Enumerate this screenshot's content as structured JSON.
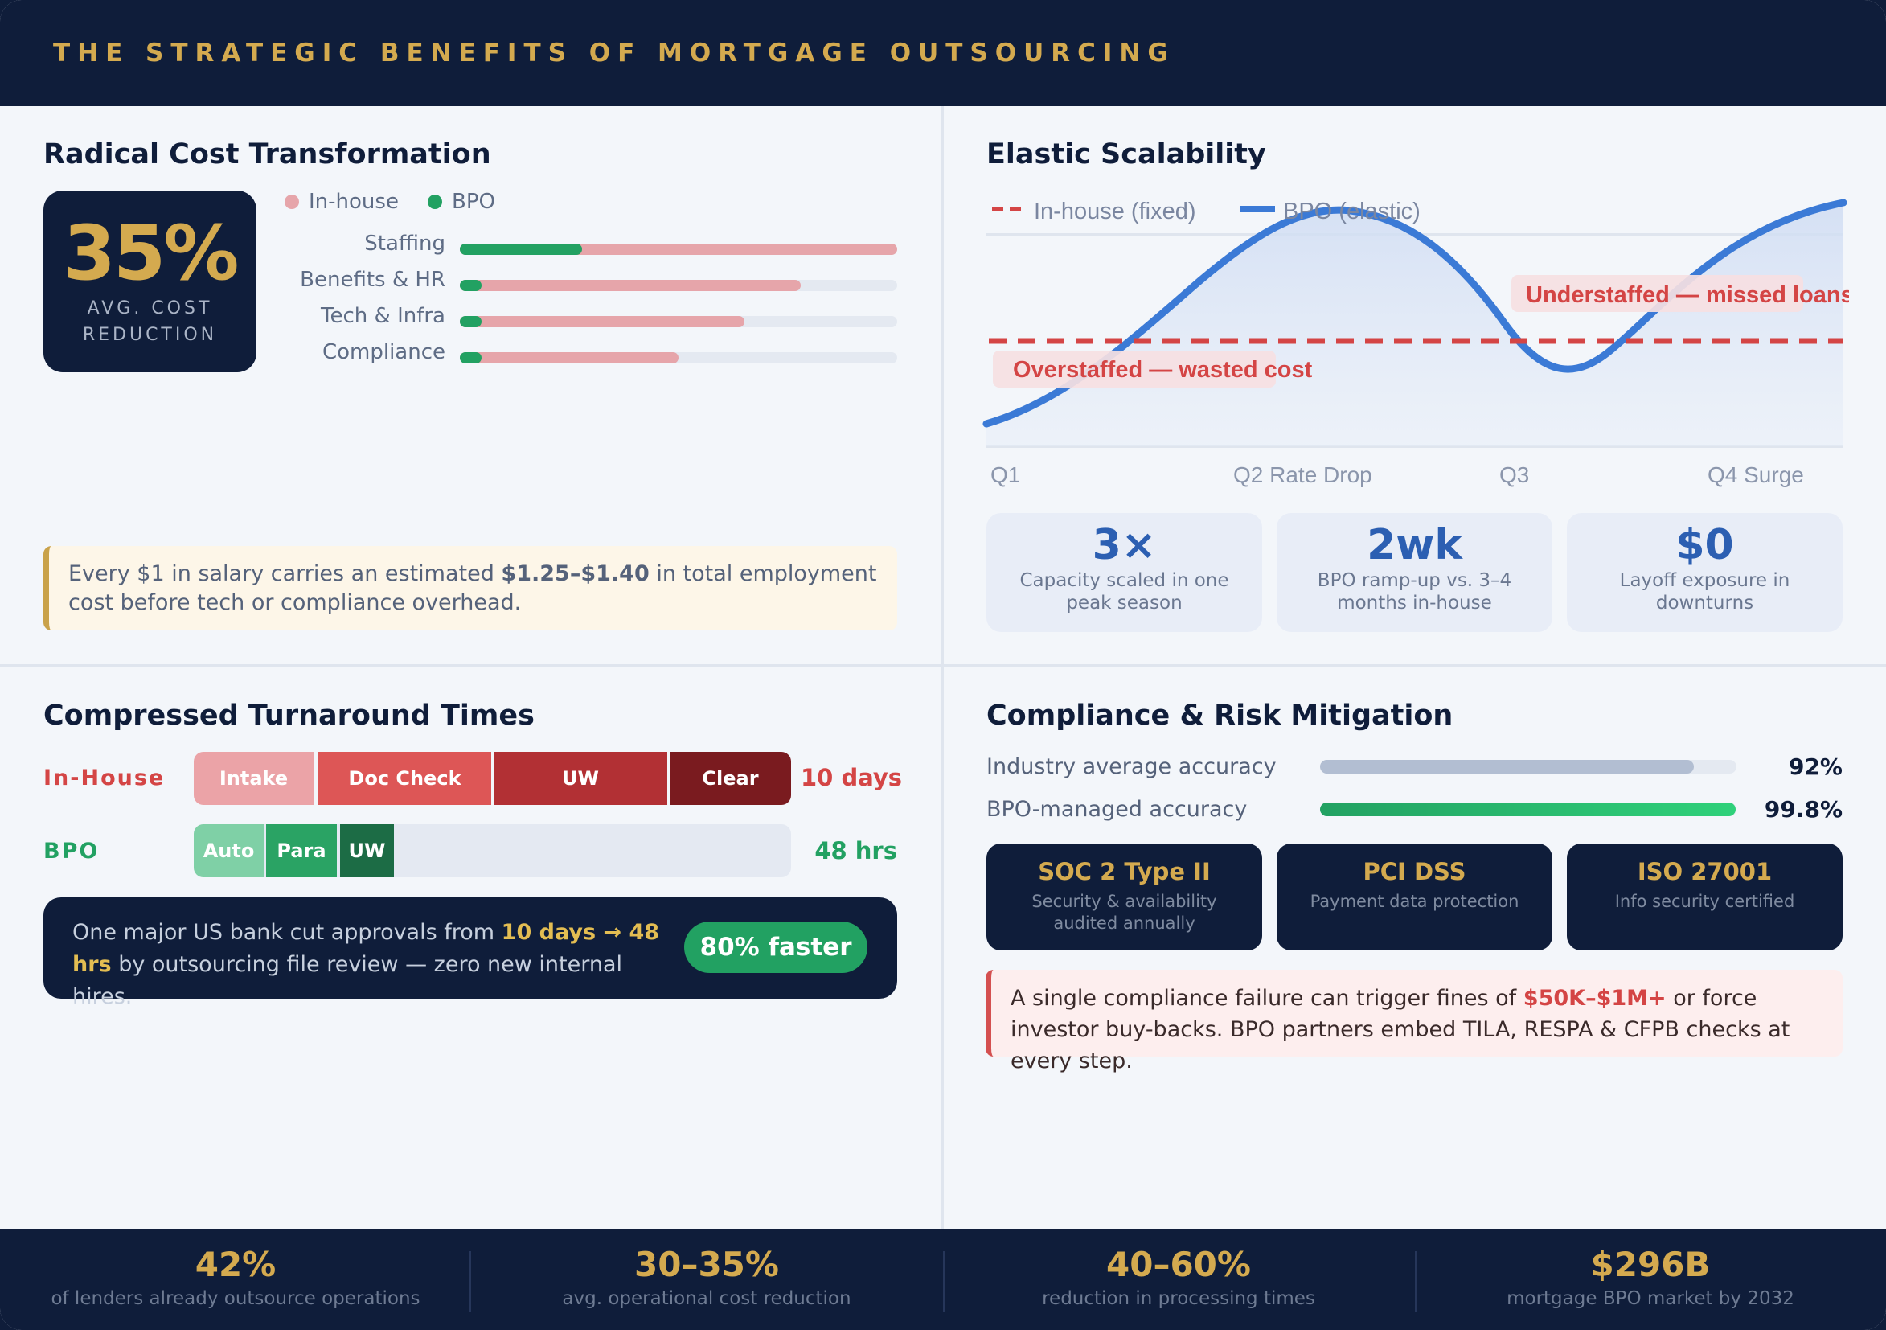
{
  "header": {
    "title": "THE STRATEGIC BENEFITS OF MORTGAGE OUTSOURCING"
  },
  "cost": {
    "title": "Radical Cost Transformation",
    "big_value": "35%",
    "big_label": "AVG. COST REDUCTION",
    "legend": {
      "inhouse": "In-house",
      "bpo": "BPO"
    },
    "colors": {
      "inhouse": "#e6a5aa",
      "bpo": "#22a162"
    },
    "rows": [
      {
        "label": "Staffing",
        "inhouse": 1.0,
        "bpo": 0.28
      },
      {
        "label": "Benefits & HR",
        "inhouse": 0.78,
        "bpo": 0.05
      },
      {
        "label": "Tech & Infra",
        "inhouse": 0.65,
        "bpo": 0.05
      },
      {
        "label": "Compliance",
        "inhouse": 0.5,
        "bpo": 0.05
      }
    ],
    "note_pre": "Every $1 in salary carries an estimated ",
    "note_bold": "$1.25–$1.40",
    "note_post": " in total employment cost before tech or compliance overhead."
  },
  "scalability": {
    "title": "Elastic Scalability",
    "legend_fixed": "In-house (fixed)",
    "legend_elastic": "BPO (elastic)",
    "label_under": "Understaffed — missed loans",
    "label_over": "Overstaffed — wasted cost",
    "x_labels": [
      "Q1",
      "Q2 Rate Drop",
      "Q3",
      "Q4 Surge"
    ],
    "cards": [
      {
        "value": "3×",
        "desc": "Capacity scaled in one peak season"
      },
      {
        "value": "2wk",
        "desc": "BPO ramp-up vs. 3–4 months in-house"
      },
      {
        "value": "$0",
        "desc": "Layoff exposure in downturns"
      }
    ]
  },
  "turnaround": {
    "title": "Compressed Turnaround Times",
    "inhouse_label": "In-House",
    "inhouse_time": "10 days",
    "inhouse_segments": [
      "Intake",
      "Doc Check",
      "UW",
      "Clear"
    ],
    "bpo_label": "BPO",
    "bpo_time": "48 hrs",
    "bpo_segments": [
      "Auto",
      "Para",
      "UW"
    ],
    "callout_pre": "One major US bank cut approvals from ",
    "callout_hl": "10 days → 48 hrs",
    "callout_post": " by outsourcing file review — zero new internal hires.",
    "callout_pill": "80% faster"
  },
  "compliance": {
    "title": "Compliance & Risk Mitigation",
    "accuracy": [
      {
        "label": "Industry average accuracy",
        "value": "92%",
        "fraction": 0.92
      },
      {
        "label": "BPO-managed accuracy",
        "value": "99.8%",
        "fraction": 0.998
      }
    ],
    "certs": [
      {
        "name": "SOC 2 Type II",
        "desc": "Security & availability audited annually"
      },
      {
        "name": "PCI DSS",
        "desc": "Payment data protection"
      },
      {
        "name": "ISO 27001",
        "desc": "Info security certified"
      }
    ],
    "warn_pre": "A single compliance failure can trigger fines of ",
    "warn_hl": "$50K–$1M+",
    "warn_post": " or force investor buy-backs. BPO partners embed TILA, RESPA & CFPB checks at every step."
  },
  "footer": [
    {
      "value": "42%",
      "label": "of lenders already outsource operations"
    },
    {
      "value": "30–35%",
      "label": "avg. operational cost reduction"
    },
    {
      "value": "40–60%",
      "label": "reduction in processing times"
    },
    {
      "value": "$296B",
      "label": "mortgage BPO market by 2032"
    }
  ]
}
